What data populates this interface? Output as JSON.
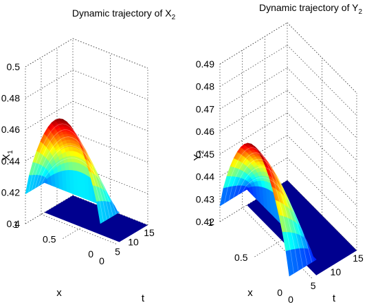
{
  "chart_data": [
    {
      "type": "surface",
      "title": {
        "base": "Dynamic trajectory of X",
        "sub": "2"
      },
      "zlabel": {
        "base": "X",
        "sub": "1"
      },
      "xlabel": "x",
      "tlabel": "t",
      "x_ticks": [
        "0",
        "0.5",
        "1"
      ],
      "t_ticks": [
        "0",
        "5",
        "10",
        "15"
      ],
      "z_ticks": [
        "0.4",
        "0.42",
        "0.44",
        "0.46",
        "0.48",
        "0.5"
      ],
      "z_tick_values": [
        0.4,
        0.42,
        0.44,
        0.46,
        0.48,
        0.5
      ],
      "xlim": [
        0,
        1
      ],
      "tlim": [
        0,
        15
      ],
      "zlim": [
        0.4,
        0.5
      ],
      "grid": true,
      "surface": {
        "z_min": 0.4,
        "z_edge": 0.419,
        "z_peak": 0.476,
        "t_drop": 6.0,
        "peak_x": 0.5
      },
      "floor_color": "#00008f"
    },
    {
      "type": "surface",
      "title": {
        "base": "Dynamic trajectory of Y",
        "sub": "2"
      },
      "zlabel": {
        "base": "Y",
        "sub": "2"
      },
      "xlabel": "x",
      "tlabel": "t",
      "x_ticks": [
        "0",
        "0.5",
        "1"
      ],
      "t_ticks": [
        "0",
        "5",
        "10",
        "15"
      ],
      "z_ticks": [
        "0.42",
        "0.43",
        "0.44",
        "0.45",
        "0.46",
        "0.47",
        "0.48",
        "0.49"
      ],
      "z_tick_values": [
        0.42,
        0.43,
        0.44,
        0.45,
        0.46,
        0.47,
        0.48,
        0.49
      ],
      "xlim": [
        0,
        1
      ],
      "tlim": [
        0,
        15
      ],
      "zlim": [
        0.42,
        0.49
      ],
      "grid": true,
      "surface": {
        "z_min": 0.42,
        "z_edge": 0.427,
        "z_peak": 0.469,
        "t_drop": 6.0,
        "peak_x": 0.5
      },
      "floor_color": "#00008f"
    }
  ]
}
